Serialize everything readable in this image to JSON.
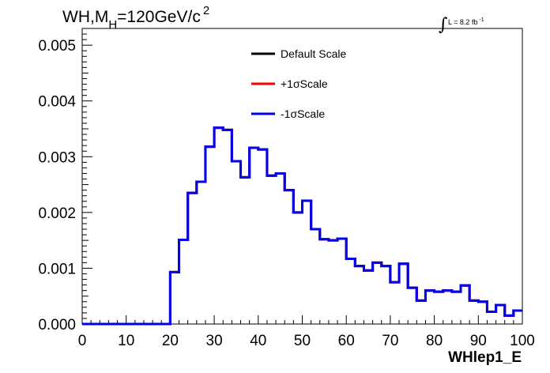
{
  "chart_data": {
    "type": "line",
    "title": {
      "prefix": "WH,M",
      "subscript": "H",
      "value": "=120GeV/c",
      "superscript": "2"
    },
    "luminosity": {
      "symbol": "∫",
      "text": "L = 8.2 fb",
      "superscript": "-1"
    },
    "xlabel": "WHlep1_E",
    "ylabel": "",
    "xlim": [
      0,
      100
    ],
    "ylim": [
      0,
      0.0053
    ],
    "x_ticks": [
      "0",
      "10",
      "20",
      "30",
      "40",
      "50",
      "60",
      "70",
      "80",
      "90",
      "100"
    ],
    "y_ticks": [
      "0.000",
      "0.001",
      "0.002",
      "0.003",
      "0.004",
      "0.005"
    ],
    "grid": false,
    "legend_position": "top-center",
    "bin_edges": [
      0,
      2,
      4,
      6,
      8,
      10,
      12,
      14,
      16,
      18,
      20,
      22,
      24,
      26,
      28,
      30,
      32,
      34,
      36,
      38,
      40,
      42,
      44,
      46,
      48,
      50,
      52,
      54,
      56,
      58,
      60,
      62,
      64,
      66,
      68,
      70,
      72,
      74,
      76,
      78,
      80,
      82,
      84,
      86,
      88,
      90,
      92,
      94,
      96,
      98,
      100
    ],
    "series": [
      {
        "name": "Default Scale",
        "color": "#000000",
        "values": [
          0,
          0,
          0,
          0,
          0,
          0,
          0,
          0,
          0,
          0,
          0.00093,
          0.00151,
          0.00235,
          0.00255,
          0.00318,
          0.00352,
          0.00348,
          0.00292,
          0.00263,
          0.00316,
          0.00313,
          0.00266,
          0.0027,
          0.0024,
          0.002,
          0.00221,
          0.0017,
          0.00152,
          0.0015,
          0.00153,
          0.00117,
          0.00104,
          0.00096,
          0.0011,
          0.00104,
          0.00075,
          0.00108,
          0.00065,
          0.00042,
          0.0006,
          0.00058,
          0.0006,
          0.00058,
          0.00069,
          0.00042,
          0.0004,
          0.00022,
          0.00034,
          0.00015,
          0.00024
        ]
      },
      {
        "name": "+1σScale",
        "color": "#ff0000",
        "values": [
          0,
          0,
          0,
          0,
          0,
          0,
          0,
          0,
          0,
          0,
          0.00093,
          0.00151,
          0.00235,
          0.00255,
          0.00318,
          0.00352,
          0.00348,
          0.00292,
          0.00263,
          0.00316,
          0.00313,
          0.00266,
          0.0027,
          0.0024,
          0.002,
          0.00221,
          0.0017,
          0.00152,
          0.0015,
          0.00153,
          0.00117,
          0.00104,
          0.00096,
          0.0011,
          0.00104,
          0.00075,
          0.00108,
          0.00065,
          0.00042,
          0.0006,
          0.00058,
          0.0006,
          0.00058,
          0.00069,
          0.00042,
          0.0004,
          0.00022,
          0.00034,
          0.00015,
          0.00024
        ]
      },
      {
        "name": "-1σScale",
        "color": "#0000ee",
        "values": [
          0,
          0,
          0,
          0,
          0,
          0,
          0,
          0,
          0,
          0,
          0.00093,
          0.00151,
          0.00235,
          0.00255,
          0.00318,
          0.00352,
          0.00348,
          0.00292,
          0.00263,
          0.00316,
          0.00313,
          0.00266,
          0.0027,
          0.0024,
          0.002,
          0.00221,
          0.0017,
          0.00152,
          0.0015,
          0.00153,
          0.00117,
          0.00104,
          0.00096,
          0.0011,
          0.00104,
          0.00075,
          0.00108,
          0.00065,
          0.00042,
          0.0006,
          0.00058,
          0.0006,
          0.00058,
          0.00069,
          0.00042,
          0.0004,
          0.00022,
          0.00034,
          0.00015,
          0.00024
        ]
      }
    ]
  }
}
